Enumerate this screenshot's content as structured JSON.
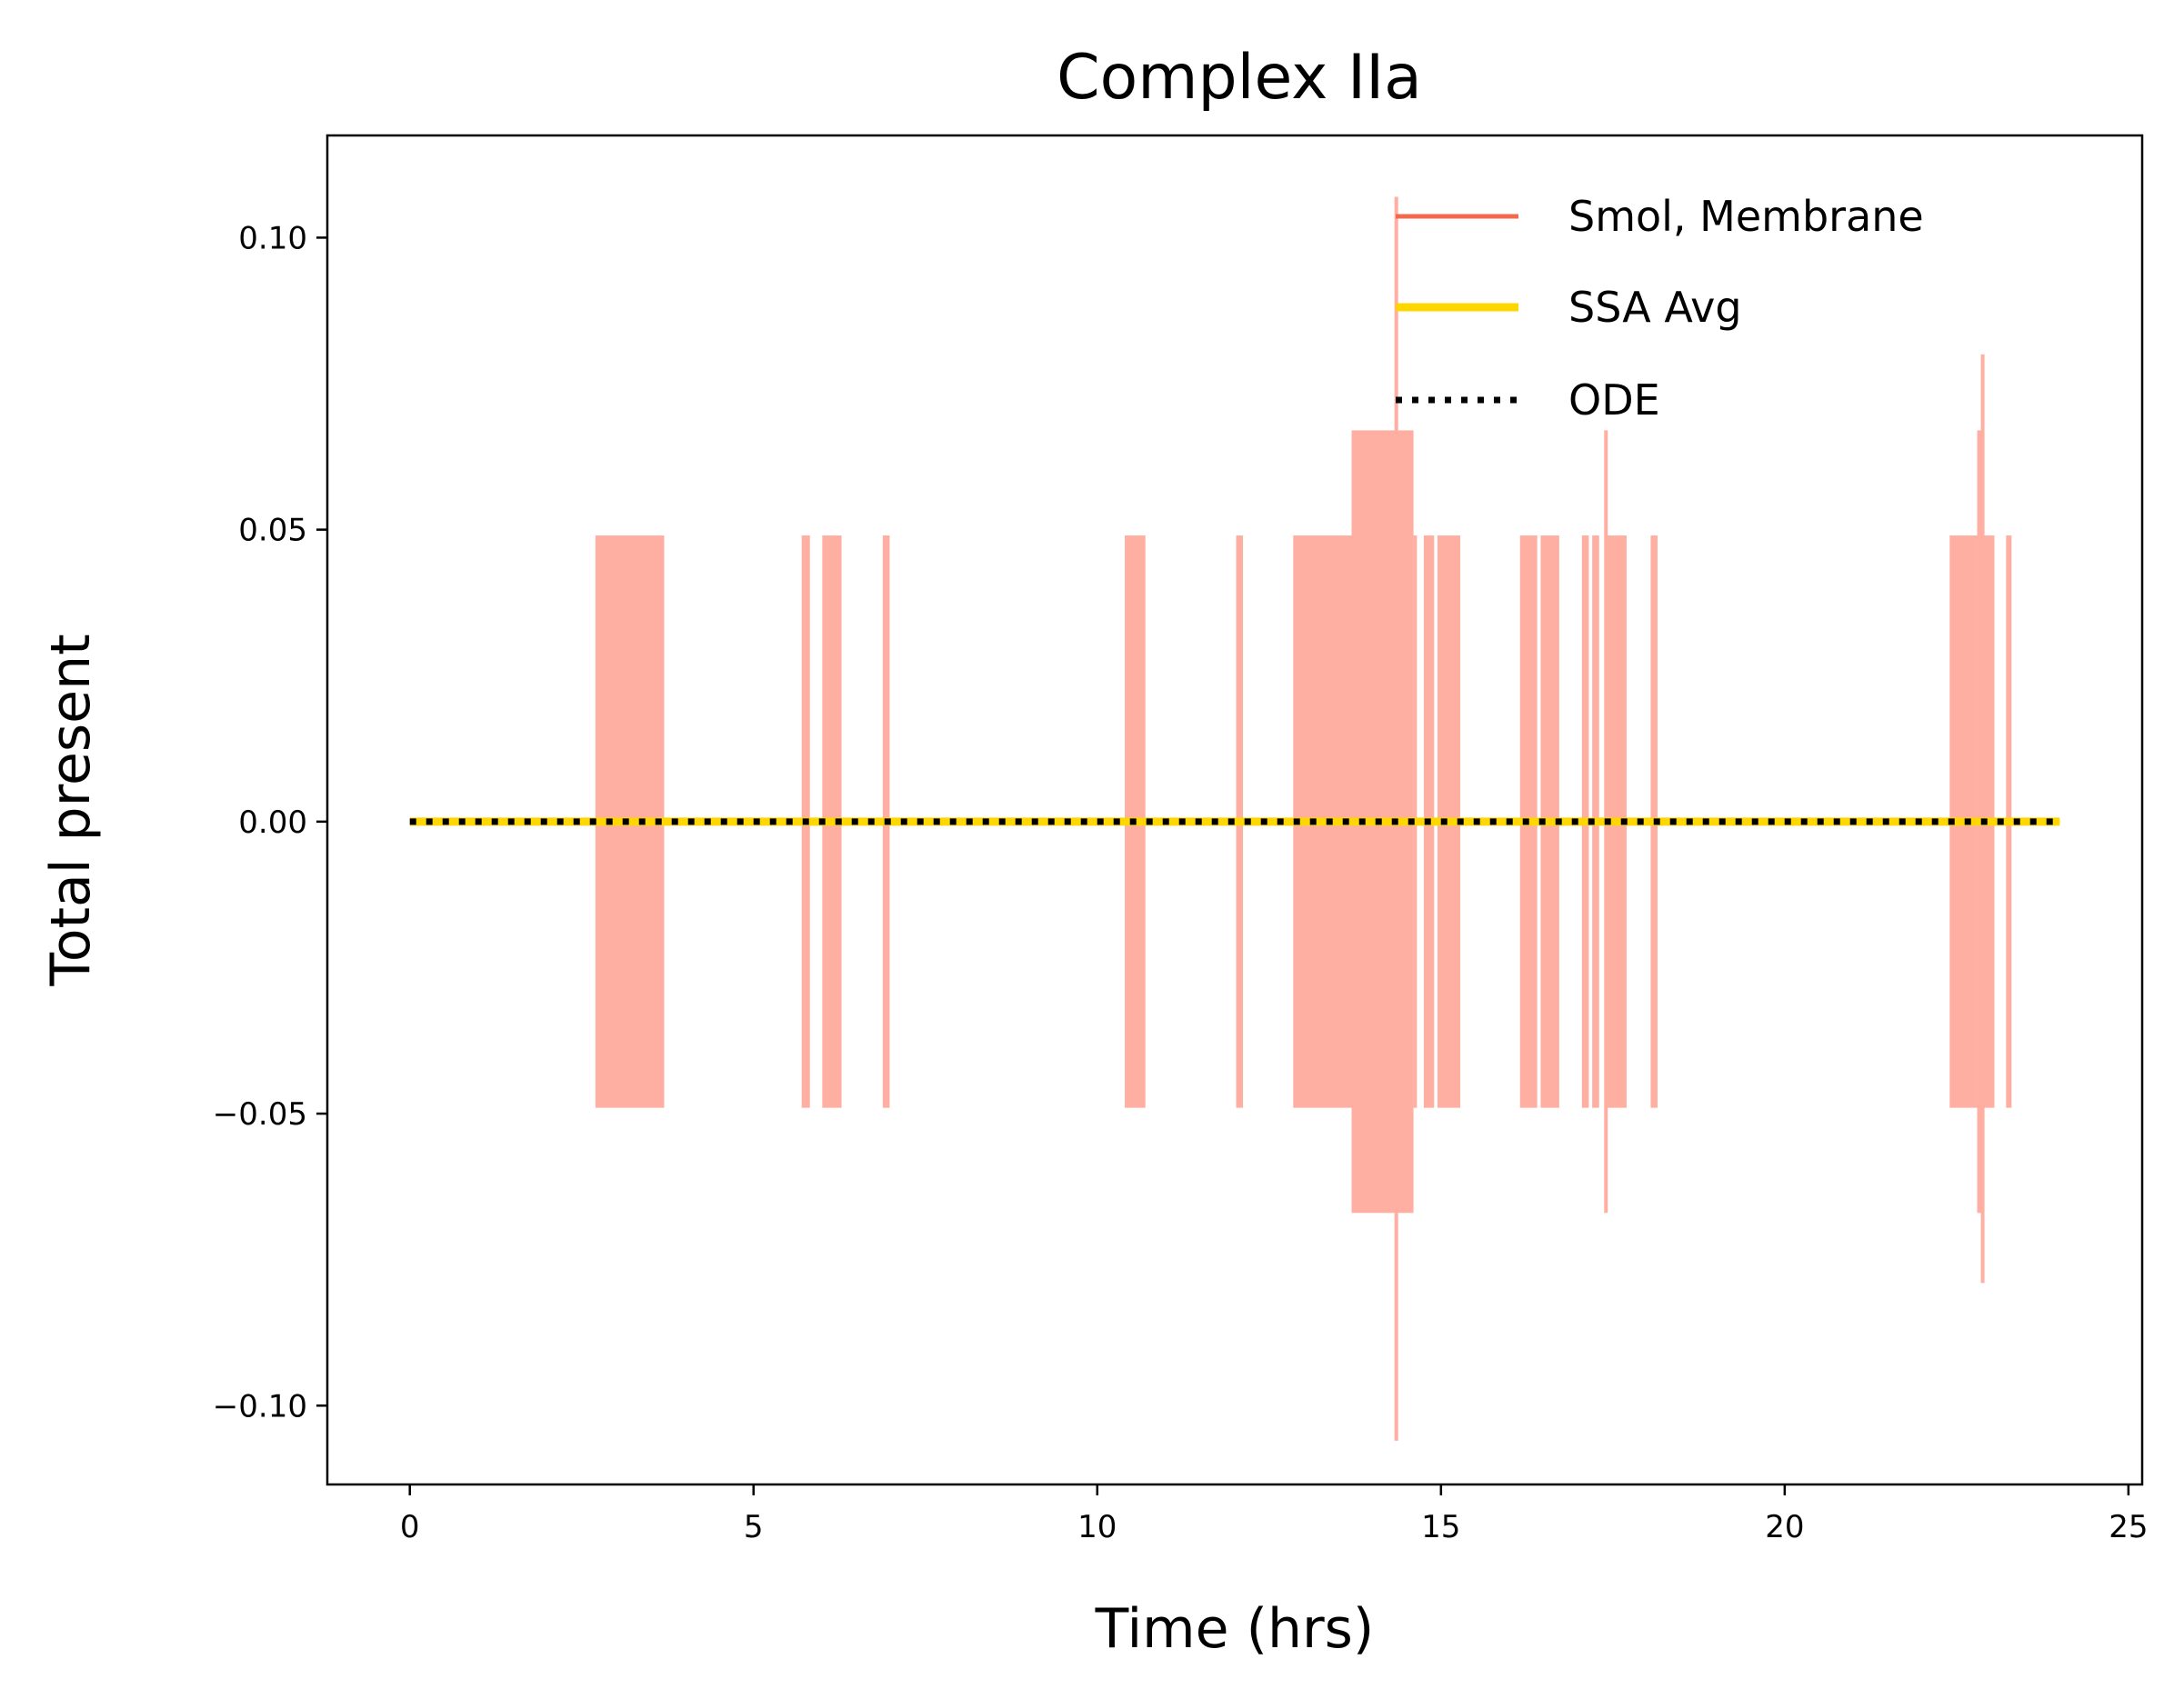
{
  "chart_data": {
    "type": "line",
    "title": "Complex IIa",
    "xlabel": "Time (hrs)",
    "ylabel": "Total present",
    "xlim": [
      -1.2,
      25.2
    ],
    "ylim": [
      -0.1135,
      0.1175
    ],
    "xticks": [
      0,
      5,
      10,
      15,
      20,
      25
    ],
    "xtick_labels": [
      "0",
      "5",
      "10",
      "15",
      "20",
      "25"
    ],
    "yticks": [
      -0.1,
      -0.05,
      0.0,
      0.05,
      0.1
    ],
    "ytick_labels": [
      "−0.10",
      "−0.05",
      "0.00",
      "0.05",
      "0.10"
    ],
    "grid": false,
    "legend_position": "top-right",
    "colors": {
      "smol_line": "#f4694b",
      "smol_band": "#ffaea2",
      "ssa": "#ffd700",
      "ode": "#000000"
    },
    "legend": [
      {
        "label": "Smol, Membrane",
        "style": "solid",
        "color": "#f4694b"
      },
      {
        "label": "SSA Avg",
        "style": "solid",
        "color": "#ffd700"
      },
      {
        "label": "ODE",
        "style": "dotted",
        "color": "#000000"
      }
    ],
    "series": [
      {
        "name": "Smol, Membrane",
        "mean": 0.0,
        "band_segments": [
          {
            "x0": 2.7,
            "x1": 3.7,
            "half_width": 0.049
          },
          {
            "x0": 5.7,
            "x1": 5.82,
            "half_width": 0.049
          },
          {
            "x0": 6.0,
            "x1": 6.28,
            "half_width": 0.049
          },
          {
            "x0": 6.88,
            "x1": 6.98,
            "half_width": 0.049
          },
          {
            "x0": 10.4,
            "x1": 10.7,
            "half_width": 0.049
          },
          {
            "x0": 12.02,
            "x1": 12.12,
            "half_width": 0.049
          },
          {
            "x0": 12.85,
            "x1": 13.7,
            "half_width": 0.049
          },
          {
            "x0": 13.7,
            "x1": 14.6,
            "half_width": 0.067
          },
          {
            "x0": 14.6,
            "x1": 14.65,
            "half_width": 0.049
          },
          {
            "x0": 14.75,
            "x1": 14.9,
            "half_width": 0.049
          },
          {
            "x0": 14.95,
            "x1": 15.28,
            "half_width": 0.049
          },
          {
            "x0": 16.15,
            "x1": 16.4,
            "half_width": 0.049
          },
          {
            "x0": 16.45,
            "x1": 16.72,
            "half_width": 0.049
          },
          {
            "x0": 17.05,
            "x1": 17.15,
            "half_width": 0.049
          },
          {
            "x0": 17.2,
            "x1": 17.3,
            "half_width": 0.049
          },
          {
            "x0": 17.4,
            "x1": 17.7,
            "half_width": 0.049
          },
          {
            "x0": 18.05,
            "x1": 18.15,
            "half_width": 0.049
          },
          {
            "x0": 22.4,
            "x1": 22.8,
            "half_width": 0.049
          },
          {
            "x0": 22.8,
            "x1": 22.88,
            "half_width": 0.067
          },
          {
            "x0": 22.88,
            "x1": 23.05,
            "half_width": 0.049
          },
          {
            "x0": 23.22,
            "x1": 23.3,
            "half_width": 0.049
          }
        ],
        "spikes": [
          {
            "x": 14.35,
            "ymin": -0.106,
            "ymax": 0.107
          },
          {
            "x": 17.4,
            "ymin": -0.067,
            "ymax": 0.067
          },
          {
            "x": 22.88,
            "ymin": -0.079,
            "ymax": 0.08
          }
        ]
      },
      {
        "name": "SSA Avg",
        "x": [
          0,
          24
        ],
        "y": [
          0.0,
          0.0
        ]
      },
      {
        "name": "ODE",
        "x": [
          0,
          24
        ],
        "y": [
          0.0,
          0.0
        ]
      }
    ]
  }
}
